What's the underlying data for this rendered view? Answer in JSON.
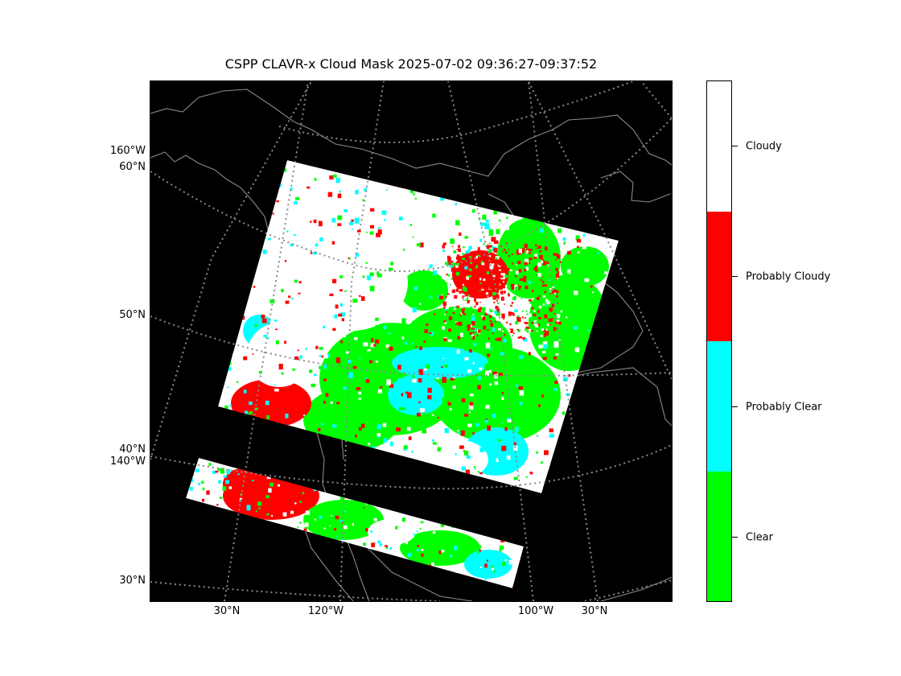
{
  "title": "CSPP CLAVR-x Cloud Mask 2025-07-02 09:36:27-09:37:52",
  "left_labels": {
    "lon_160w": "160°W",
    "lat_60n": "60°N",
    "lat_50n": "50°N",
    "lat_40n": "40°N",
    "lon_140w": "140°W",
    "lat_30n": "30°N"
  },
  "bottom_labels": {
    "lat_30n_left": "30°N",
    "lon_120w": "120°W",
    "lon_100w": "100°W",
    "lat_30n_right": "30°N"
  },
  "colorbar": {
    "classes": [
      {
        "label": "Cloudy",
        "color": "#ffffff"
      },
      {
        "label": "Probably Cloudy",
        "color": "#ff0000"
      },
      {
        "label": "Probably Clear",
        "color": "#00ffff"
      },
      {
        "label": "Clear",
        "color": "#00ff00"
      }
    ]
  },
  "colors": {
    "background": "#000000",
    "coastline": "#8a8a8a",
    "gridline": "#8a8a8a"
  }
}
